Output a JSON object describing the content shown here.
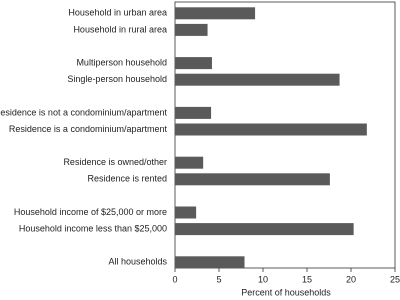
{
  "chart_data": {
    "type": "hbar",
    "xlabel": "Percent of households",
    "categories": [
      "Household in urban area",
      "Household in rural area",
      null,
      "Multiperson household",
      "Single-person household",
      null,
      "Residence is not a condominium/apartment",
      "Residence is a condominium/apartment",
      null,
      "Residence is owned/other",
      "Residence is rented",
      null,
      "Household income of $25,000 or more",
      "Household income less than $25,000",
      null,
      "All households"
    ],
    "values": [
      9.1,
      3.7,
      null,
      4.2,
      18.7,
      null,
      4.1,
      21.8,
      null,
      3.2,
      17.6,
      null,
      2.4,
      20.3,
      null,
      7.9
    ],
    "color": "#5a5a5a",
    "xlim": [
      0,
      25
    ],
    "xticks": [
      0,
      5,
      10,
      15,
      20,
      25
    ]
  }
}
